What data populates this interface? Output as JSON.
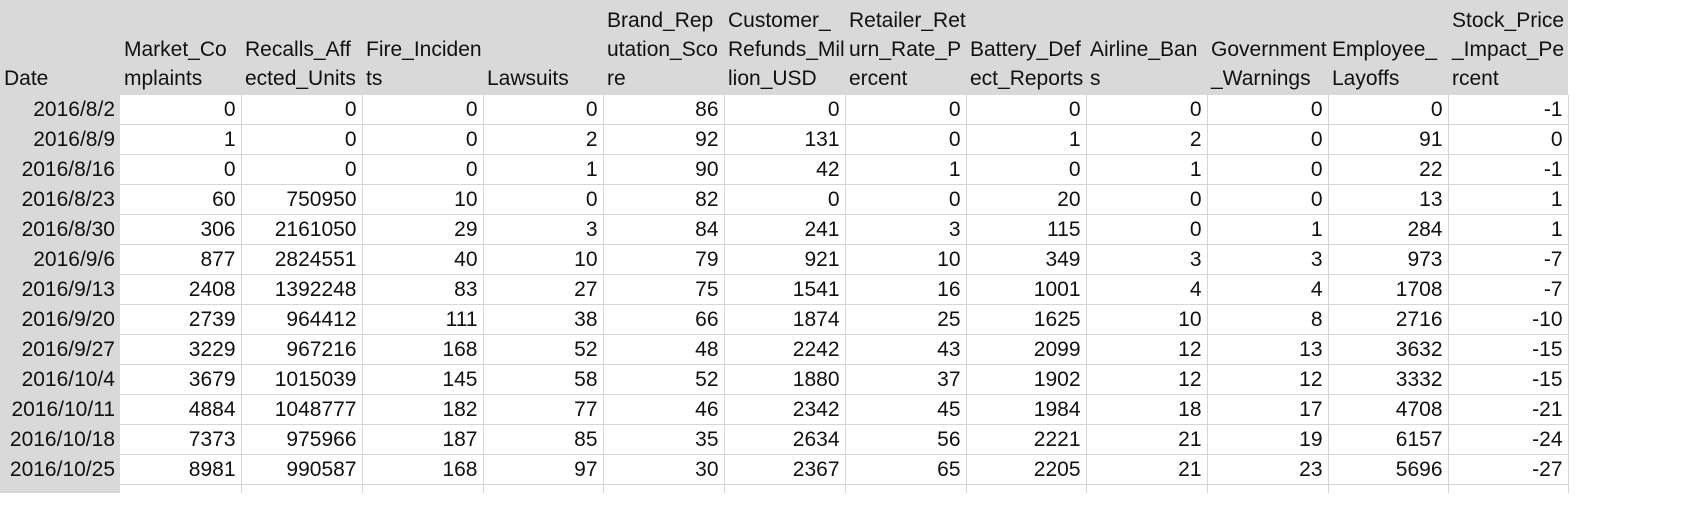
{
  "columns": [
    "Date",
    "Market_Complaints",
    "Recalls_Affected_Units",
    "Fire_Incidents",
    "Lawsuits",
    "Brand_Reputation_Score",
    "Customer_Refunds_Million_USD",
    "Retailer_Return_Rate_Percent",
    "Battery_Defect_Reports",
    "Airline_Bans",
    "Government_Warnings",
    "Employee_Layoffs",
    "Stock_Price_Impact_Percent"
  ],
  "rows": [
    [
      "2016/8/2",
      "0",
      "0",
      "0",
      "0",
      "86",
      "0",
      "0",
      "0",
      "0",
      "0",
      "0",
      "-1"
    ],
    [
      "2016/8/9",
      "1",
      "0",
      "0",
      "2",
      "92",
      "131",
      "0",
      "1",
      "2",
      "0",
      "91",
      "0"
    ],
    [
      "2016/8/16",
      "0",
      "0",
      "0",
      "1",
      "90",
      "42",
      "1",
      "0",
      "1",
      "0",
      "22",
      "-1"
    ],
    [
      "2016/8/23",
      "60",
      "750950",
      "10",
      "0",
      "82",
      "0",
      "0",
      "20",
      "0",
      "0",
      "13",
      "1"
    ],
    [
      "2016/8/30",
      "306",
      "2161050",
      "29",
      "3",
      "84",
      "241",
      "3",
      "115",
      "0",
      "1",
      "284",
      "1"
    ],
    [
      "2016/9/6",
      "877",
      "2824551",
      "40",
      "10",
      "79",
      "921",
      "10",
      "349",
      "3",
      "3",
      "973",
      "-7"
    ],
    [
      "2016/9/13",
      "2408",
      "1392248",
      "83",
      "27",
      "75",
      "1541",
      "16",
      "1001",
      "4",
      "4",
      "1708",
      "-7"
    ],
    [
      "2016/9/20",
      "2739",
      "964412",
      "111",
      "38",
      "66",
      "1874",
      "25",
      "1625",
      "10",
      "8",
      "2716",
      "-10"
    ],
    [
      "2016/9/27",
      "3229",
      "967216",
      "168",
      "52",
      "48",
      "2242",
      "43",
      "2099",
      "12",
      "13",
      "3632",
      "-15"
    ],
    [
      "2016/10/4",
      "3679",
      "1015039",
      "145",
      "58",
      "52",
      "1880",
      "37",
      "1902",
      "12",
      "12",
      "3332",
      "-15"
    ],
    [
      "2016/10/11",
      "4884",
      "1048777",
      "182",
      "77",
      "46",
      "2342",
      "45",
      "1984",
      "18",
      "17",
      "4708",
      "-21"
    ],
    [
      "2016/10/18",
      "7373",
      "975966",
      "187",
      "85",
      "35",
      "2634",
      "56",
      "2221",
      "21",
      "19",
      "6157",
      "-24"
    ],
    [
      "2016/10/25",
      "8981",
      "990587",
      "168",
      "97",
      "30",
      "2367",
      "65",
      "2205",
      "21",
      "23",
      "5696",
      "-27"
    ]
  ]
}
